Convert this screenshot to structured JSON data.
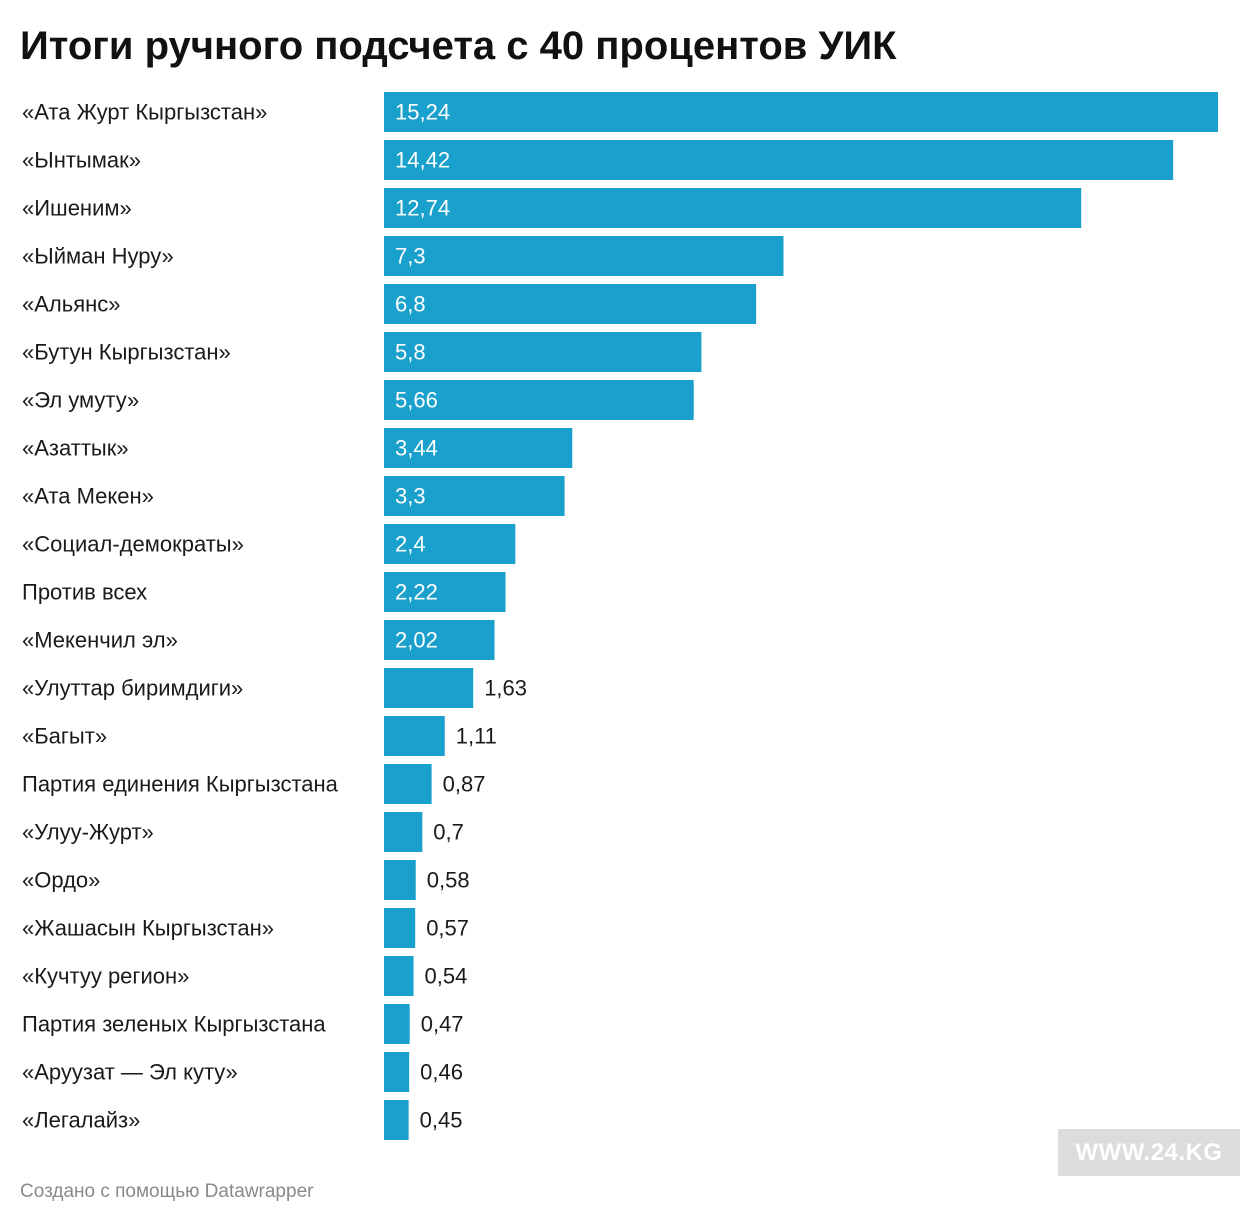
{
  "title": "Итоги ручного подсчета с 40 процентов УИК",
  "footer": "Создано с помощью Datawrapper",
  "watermark": "WWW.24.KG",
  "colors": {
    "bar": "#1aa0cd",
    "inside_label": "#ffffff",
    "outside_label": "#1a1a1a"
  },
  "chart_data": {
    "type": "bar",
    "orientation": "horizontal",
    "title": "Итоги ручного подсчета с 40 процентов УИК",
    "xlabel": "",
    "ylabel": "",
    "xlim": [
      0,
      15.24
    ],
    "grid": false,
    "legend": "none",
    "categories": [
      "«Ата Журт Кыргызстан»",
      "«Ынтымак»",
      "«Ишеним»",
      "«Ыйман Нуру»",
      "«Альянс»",
      "«Бутун Кыргызстан»",
      "«Эл умуту»",
      "«Азаттык»",
      "«Ата Мекен»",
      "«Социал-демократы»",
      "Против всех",
      "«Мекенчил эл»",
      "«Улуттар биримдиги»",
      "«Багыт»",
      "Партия единения Кыргызстана",
      "«Улуу-Журт»",
      "«Ордо»",
      "«Жашасын Кыргызстан»",
      "«Кучтуу регион»",
      "Партия зеленых Кыргызстана",
      "«Аруузат — Эл куту»",
      "«Легалайз»"
    ],
    "values": [
      15.24,
      14.42,
      12.74,
      7.3,
      6.8,
      5.8,
      5.66,
      3.44,
      3.3,
      2.4,
      2.22,
      2.02,
      1.63,
      1.11,
      0.87,
      0.7,
      0.58,
      0.57,
      0.54,
      0.47,
      0.46,
      0.45
    ],
    "value_labels": [
      "15,24",
      "14,42",
      "12,74",
      "7,3",
      "6,8",
      "5,8",
      "5,66",
      "3,44",
      "3,3",
      "2,4",
      "2,22",
      "2,02",
      "1,63",
      "1,11",
      "0,87",
      "0,7",
      "0,58",
      "0,57",
      "0,54",
      "0,47",
      "0,46",
      "0,45"
    ]
  }
}
